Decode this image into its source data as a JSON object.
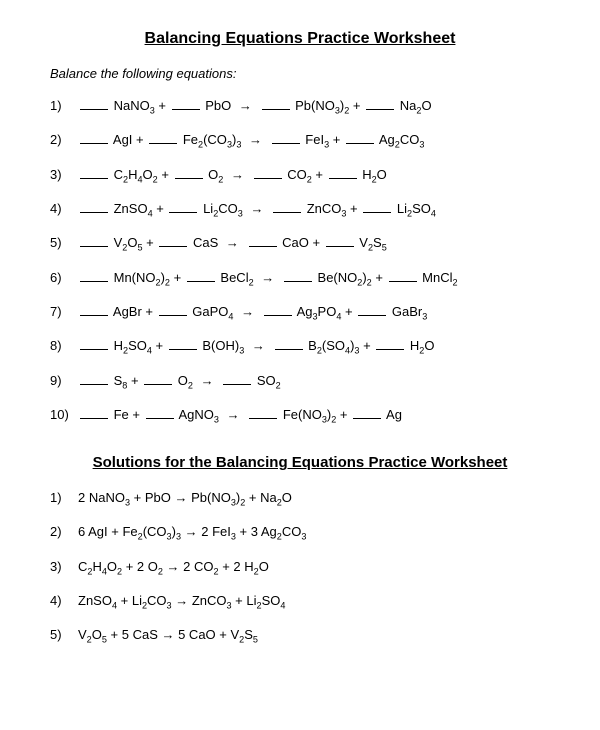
{
  "title": "Balancing Equations Practice Worksheet",
  "instruction": "Balance the following equations:",
  "solutions_title": "Solutions for the Balancing Equations Practice Worksheet",
  "arrow": "→",
  "problems": [
    {
      "num": "1)",
      "terms": [
        [
          "NaNO",
          "3"
        ],
        [
          "PbO",
          ""
        ]
      ],
      "products": [
        [
          "Pb(NO",
          "3",
          ")",
          "2"
        ],
        [
          "Na",
          "2",
          "O"
        ]
      ]
    },
    {
      "num": "2)",
      "terms": [
        [
          "AgI",
          ""
        ],
        [
          "Fe",
          "2",
          "(CO",
          "3",
          ")",
          "3"
        ]
      ],
      "products": [
        [
          "FeI",
          "3"
        ],
        [
          "Ag",
          "2",
          "CO",
          "3"
        ]
      ]
    },
    {
      "num": "3)",
      "terms": [
        [
          "C",
          "2",
          "H",
          "4",
          "O",
          "2"
        ],
        [
          "O",
          "2"
        ]
      ],
      "products": [
        [
          "CO",
          "2"
        ],
        [
          "H",
          "2",
          "O"
        ]
      ]
    },
    {
      "num": "4)",
      "terms": [
        [
          "ZnSO",
          "4"
        ],
        [
          "Li",
          "2",
          "CO",
          "3"
        ]
      ],
      "products": [
        [
          "ZnCO",
          "3"
        ],
        [
          "Li",
          "2",
          "SO",
          "4"
        ]
      ]
    },
    {
      "num": "5)",
      "terms": [
        [
          "V",
          "2",
          "O",
          "5"
        ],
        [
          "CaS",
          ""
        ]
      ],
      "products": [
        [
          "CaO",
          ""
        ],
        [
          "V",
          "2",
          "S",
          "5"
        ]
      ]
    },
    {
      "num": "6)",
      "terms": [
        [
          "Mn(NO",
          "2",
          ")",
          "2"
        ],
        [
          "BeCl",
          "2"
        ]
      ],
      "products": [
        [
          "Be(NO",
          "2",
          ")",
          "2"
        ],
        [
          "MnCl",
          "2"
        ]
      ]
    },
    {
      "num": "7)",
      "terms": [
        [
          "AgBr",
          ""
        ],
        [
          "GaPO",
          "4"
        ]
      ],
      "products": [
        [
          "Ag",
          "3",
          "PO",
          "4"
        ],
        [
          "GaBr",
          "3"
        ]
      ]
    },
    {
      "num": "8)",
      "terms": [
        [
          "H",
          "2",
          "SO",
          "4"
        ],
        [
          "B(OH)",
          "3"
        ]
      ],
      "products": [
        [
          "B",
          "2",
          "(SO",
          "4",
          ")",
          "3"
        ],
        [
          "H",
          "2",
          "O"
        ]
      ]
    },
    {
      "num": "9)",
      "terms": [
        [
          "S",
          "8"
        ],
        [
          "O",
          "2"
        ]
      ],
      "products": [
        [
          "SO",
          "2"
        ]
      ]
    },
    {
      "num": "10)",
      "terms": [
        [
          "Fe",
          ""
        ],
        [
          "AgNO",
          "3"
        ]
      ],
      "products": [
        [
          "Fe(NO",
          "3",
          ")",
          "2"
        ],
        [
          "Ag",
          ""
        ]
      ]
    }
  ],
  "solutions": [
    {
      "num": "1)",
      "text": "2 NaNO|3| + PbO → Pb(NO|3|)|2| + Na|2|O"
    },
    {
      "num": "2)",
      "text": "6 AgI + Fe|2|(CO|3|)|3| → 2 FeI|3| + 3 Ag|2|CO|3|"
    },
    {
      "num": "3)",
      "text": "C|2|H|4|O|2| + 2 O|2| → 2 CO|2| + 2 H|2|O"
    },
    {
      "num": "4)",
      "text": "ZnSO|4| + Li|2|CO|3| → ZnCO|3| + Li|2|SO|4|"
    },
    {
      "num": "5)",
      "text": "V|2|O|5| + 5 CaS → 5 CaO + V|2|S|5|"
    }
  ]
}
